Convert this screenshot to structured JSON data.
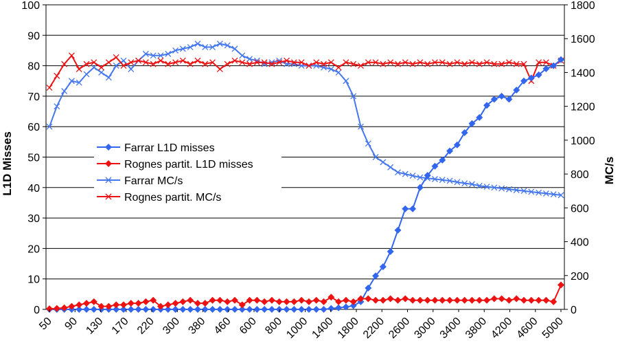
{
  "chart_data": {
    "type": "line",
    "title": "",
    "x_tick_labels": [
      "50",
      "90",
      "130",
      "170",
      "220",
      "300",
      "380",
      "460",
      "600",
      "800",
      "1000",
      "1400",
      "1800",
      "2200",
      "2600",
      "3000",
      "3400",
      "3800",
      "4200",
      "4600",
      "5000"
    ],
    "ylabel_left": "L1D Misses",
    "ylabel_right": "MC/s",
    "ylim_left": [
      0,
      100
    ],
    "ylim_right": [
      0,
      1800
    ],
    "yticks_left": [
      "0",
      "10",
      "20",
      "30",
      "40",
      "50",
      "60",
      "70",
      "80",
      "90",
      "100"
    ],
    "yticks_right": [
      "0",
      "200",
      "400",
      "600",
      "800",
      "1000",
      "1200",
      "1400",
      "1600",
      "1800"
    ],
    "grid": "horizontal",
    "legend_position": "left-center",
    "num_points": 70,
    "series": [
      {
        "name": "Farrar L1D misses",
        "axis": "left",
        "color": "#3366ee",
        "marker": "diamond",
        "values": [
          0,
          0,
          0,
          0,
          0,
          0,
          0,
          0,
          0,
          0,
          0,
          0,
          0,
          0,
          0,
          0,
          0,
          0,
          0,
          0,
          0,
          0,
          0,
          0,
          0,
          0,
          0,
          0,
          0,
          0,
          0,
          0,
          0,
          0,
          0,
          0,
          0,
          0,
          0.3,
          0.5,
          0.8,
          1.2,
          2.5,
          7,
          11,
          14,
          19,
          26,
          33,
          33,
          40,
          44,
          47,
          49,
          52,
          54,
          58,
          61,
          63,
          67,
          69,
          70,
          69,
          72,
          75,
          76,
          77,
          79,
          80,
          82
        ]
      },
      {
        "name": "Rognes partit. L1D misses",
        "axis": "left",
        "color": "#ee1111",
        "marker": "diamond",
        "values": [
          0.2,
          0.3,
          0.5,
          1,
          1.5,
          2,
          2.5,
          1,
          1,
          1.5,
          1.5,
          2,
          2,
          2.5,
          3,
          1,
          1.5,
          2,
          2.5,
          3,
          2,
          2,
          3,
          3,
          2.5,
          3,
          1.5,
          3,
          3,
          2.5,
          3,
          2.5,
          2.5,
          2.5,
          3,
          2.5,
          3,
          2.5,
          4,
          2.5,
          3,
          2.5,
          3.5,
          3.5,
          3,
          3,
          3.5,
          3,
          3.5,
          3,
          3,
          3,
          3,
          3,
          3,
          3,
          3,
          3,
          3,
          3,
          3.5,
          3.5,
          3,
          3.5,
          3,
          3,
          3,
          3,
          2.5,
          8
        ]
      },
      {
        "name": "Farrar MC/s",
        "axis": "right",
        "color": "#4477ee",
        "marker": "x",
        "values": [
          1080,
          1200,
          1290,
          1350,
          1340,
          1390,
          1430,
          1400,
          1370,
          1440,
          1470,
          1420,
          1470,
          1510,
          1500,
          1500,
          1510,
          1530,
          1540,
          1550,
          1570,
          1550,
          1550,
          1570,
          1560,
          1540,
          1500,
          1480,
          1470,
          1450,
          1460,
          1470,
          1450,
          1450,
          1440,
          1440,
          1440,
          1430,
          1420,
          1400,
          1350,
          1260,
          1080,
          980,
          900,
          870,
          840,
          810,
          800,
          790,
          780,
          775,
          770,
          765,
          760,
          752,
          745,
          740,
          730,
          725,
          720,
          715,
          710,
          705,
          700,
          695,
          690,
          685,
          680,
          675
        ]
      },
      {
        "name": "Rognes partit. MC/s",
        "axis": "right",
        "color": "#ee1111",
        "marker": "x",
        "values": [
          1310,
          1380,
          1450,
          1500,
          1420,
          1450,
          1460,
          1430,
          1460,
          1490,
          1440,
          1460,
          1470,
          1460,
          1450,
          1470,
          1450,
          1460,
          1470,
          1450,
          1470,
          1450,
          1460,
          1420,
          1450,
          1470,
          1460,
          1450,
          1460,
          1460,
          1450,
          1460,
          1470,
          1460,
          1460,
          1440,
          1460,
          1450,
          1460,
          1430,
          1460,
          1450,
          1440,
          1460,
          1460,
          1450,
          1460,
          1450,
          1460,
          1450,
          1460,
          1450,
          1460,
          1460,
          1450,
          1460,
          1450,
          1460,
          1450,
          1460,
          1450,
          1450,
          1460,
          1450,
          1450,
          1350,
          1460,
          1460,
          1440,
          1470
        ]
      }
    ]
  }
}
